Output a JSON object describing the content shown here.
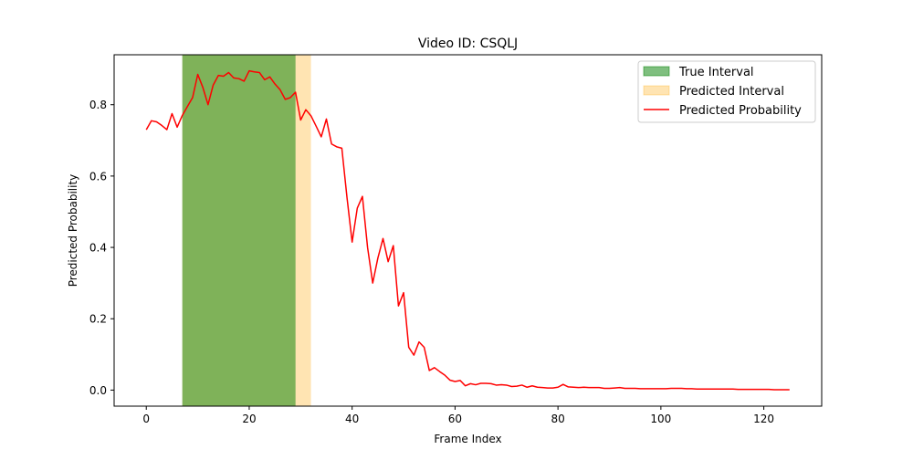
{
  "chart_data": {
    "type": "line",
    "title": "Video ID: CSQLJ",
    "xlabel": "Frame Index",
    "ylabel": "Predicted Probability",
    "xlim": [
      -6.25,
      131.25
    ],
    "ylim": [
      -0.045,
      0.94
    ],
    "x_ticks": [
      0,
      20,
      40,
      60,
      80,
      100,
      120
    ],
    "y_ticks": [
      0.0,
      0.2,
      0.4,
      0.6,
      0.8
    ],
    "x_tick_labels": [
      "0",
      "20",
      "40",
      "60",
      "80",
      "100",
      "120"
    ],
    "y_tick_labels": [
      "0.0",
      "0.2",
      "0.4",
      "0.6",
      "0.8"
    ],
    "grid": false,
    "legend_position": "top-right",
    "colors": {
      "true_interval": "#008000",
      "predicted_interval": "#ffa500",
      "probability_line": "#ff0000"
    },
    "true_interval": {
      "label": "True Interval",
      "start": 7,
      "end": 29
    },
    "predicted_interval": {
      "label": "Predicted Interval",
      "start": 7,
      "end": 32
    },
    "series": [
      {
        "name": "Predicted Probability",
        "x": [
          0,
          1,
          2,
          3,
          4,
          5,
          6,
          7,
          8,
          9,
          10,
          11,
          12,
          13,
          14,
          15,
          16,
          17,
          18,
          19,
          20,
          21,
          22,
          23,
          24,
          25,
          26,
          27,
          28,
          29,
          30,
          31,
          32,
          33,
          34,
          35,
          36,
          37,
          38,
          39,
          40,
          41,
          42,
          43,
          44,
          45,
          46,
          47,
          48,
          49,
          50,
          51,
          52,
          53,
          54,
          55,
          56,
          57,
          58,
          59,
          60,
          61,
          62,
          63,
          64,
          65,
          66,
          67,
          68,
          69,
          70,
          71,
          72,
          73,
          74,
          75,
          76,
          77,
          78,
          79,
          80,
          81,
          82,
          83,
          84,
          85,
          86,
          87,
          88,
          89,
          90,
          91,
          92,
          93,
          94,
          95,
          96,
          97,
          98,
          99,
          100,
          101,
          102,
          103,
          104,
          105,
          106,
          107,
          108,
          109,
          110,
          111,
          112,
          113,
          114,
          115,
          116,
          117,
          118,
          119,
          120,
          121,
          122,
          123,
          124,
          125
        ],
        "values": [
          0.73,
          0.755,
          0.752,
          0.742,
          0.73,
          0.775,
          0.737,
          0.77,
          0.795,
          0.82,
          0.885,
          0.848,
          0.8,
          0.855,
          0.882,
          0.88,
          0.89,
          0.875,
          0.873,
          0.866,
          0.895,
          0.892,
          0.89,
          0.87,
          0.878,
          0.858,
          0.842,
          0.815,
          0.82,
          0.835,
          0.757,
          0.786,
          0.769,
          0.74,
          0.71,
          0.76,
          0.69,
          0.682,
          0.678,
          0.54,
          0.415,
          0.51,
          0.543,
          0.4,
          0.3,
          0.37,
          0.425,
          0.36,
          0.405,
          0.236,
          0.273,
          0.12,
          0.098,
          0.135,
          0.12,
          0.055,
          0.063,
          0.052,
          0.042,
          0.028,
          0.024,
          0.027,
          0.012,
          0.018,
          0.015,
          0.019,
          0.019,
          0.018,
          0.014,
          0.015,
          0.014,
          0.01,
          0.011,
          0.014,
          0.008,
          0.012,
          0.008,
          0.007,
          0.006,
          0.006,
          0.008,
          0.016,
          0.009,
          0.008,
          0.007,
          0.008,
          0.007,
          0.007,
          0.007,
          0.005,
          0.005,
          0.006,
          0.007,
          0.005,
          0.005,
          0.005,
          0.004,
          0.004,
          0.004,
          0.004,
          0.004,
          0.004,
          0.005,
          0.005,
          0.005,
          0.004,
          0.004,
          0.003,
          0.003,
          0.003,
          0.003,
          0.003,
          0.003,
          0.003,
          0.003,
          0.002,
          0.002,
          0.002,
          0.002,
          0.002,
          0.002,
          0.002,
          0.001,
          0.001,
          0.001,
          0.001
        ]
      }
    ]
  }
}
